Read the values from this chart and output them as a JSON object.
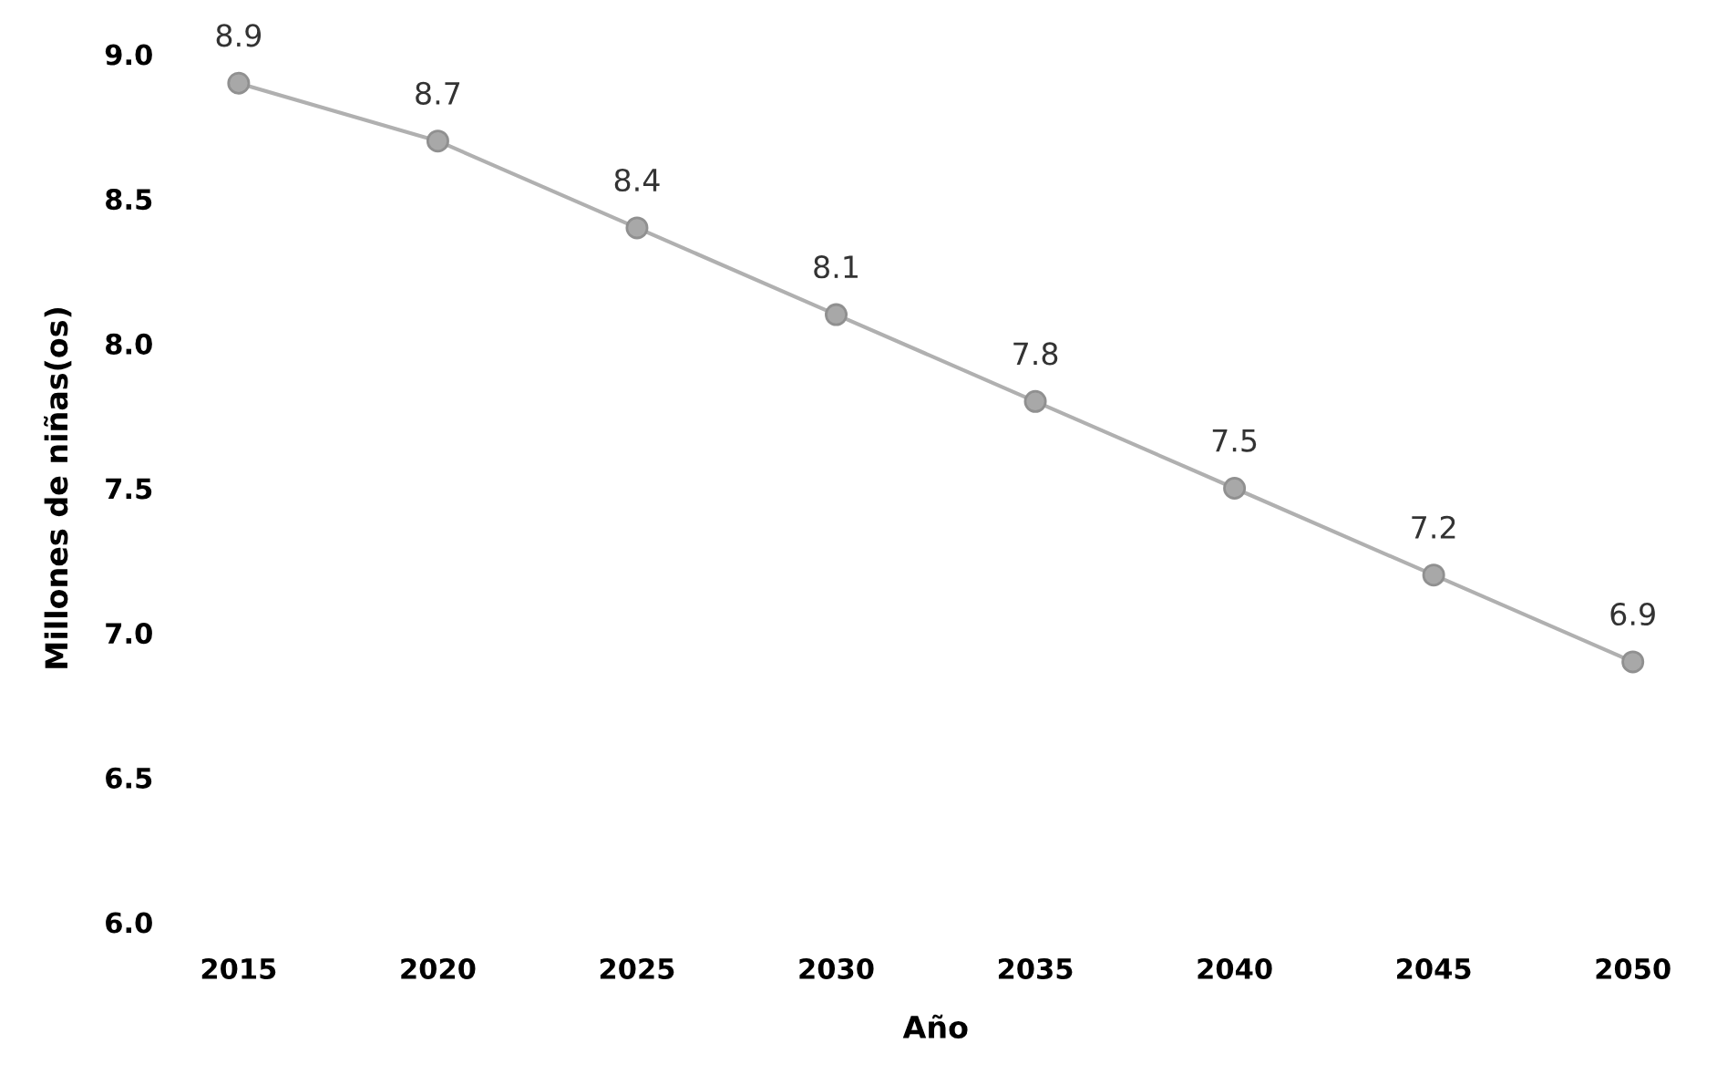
{
  "chart_data": {
    "type": "line",
    "xlabel": "Año",
    "ylabel": "Millones de niñas(os)",
    "categories": [
      "2015",
      "2020",
      "2025",
      "2030",
      "2035",
      "2040",
      "2045",
      "2050"
    ],
    "series": [
      {
        "color": "#b0b0b0",
        "values": [
          8.9,
          8.7,
          8.4,
          8.1,
          7.8,
          7.5,
          7.2,
          6.9
        ]
      }
    ],
    "ylim": [
      6.0,
      9.0
    ],
    "yticks": [
      {
        "value": 6.0,
        "label": "6.0"
      },
      {
        "value": 6.5,
        "label": "6.5"
      },
      {
        "value": 7.0,
        "label": "7.0"
      },
      {
        "value": 7.5,
        "label": "7.5"
      },
      {
        "value": 8.0,
        "label": "8.0"
      },
      {
        "value": 8.5,
        "label": "8.5"
      },
      {
        "value": 9.0,
        "label": "9.0"
      }
    ],
    "data_labels": true,
    "marker": "circle",
    "line_style": "solid",
    "grid": false,
    "legend": false
  }
}
